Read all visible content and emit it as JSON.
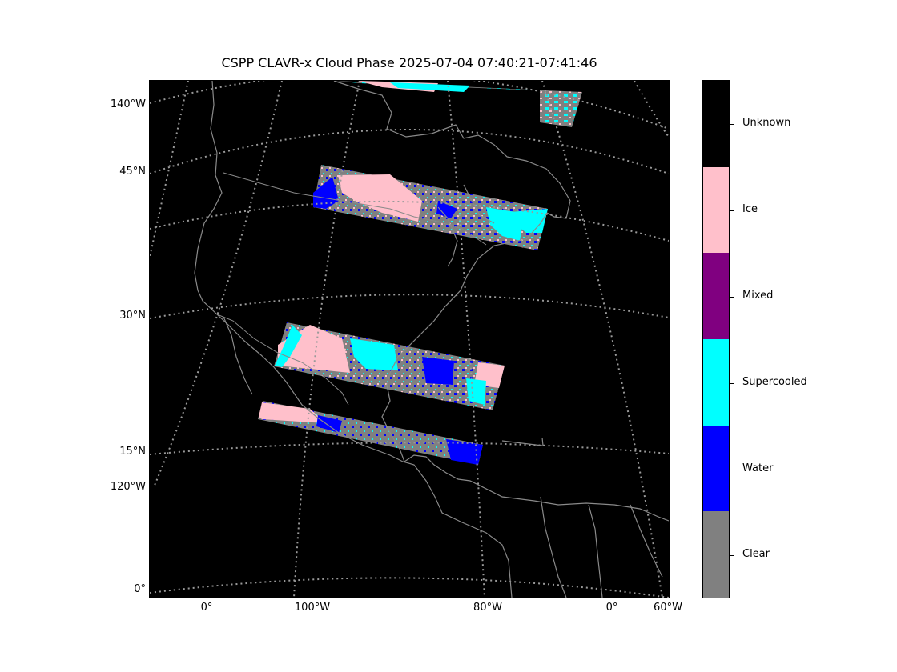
{
  "title": "CSPP CLAVR-x Cloud Phase 2025-07-04 07:40:21-07:41:46",
  "map": {
    "latitude_labels": [
      "45°N",
      "30°N",
      "15°N",
      "0°"
    ],
    "longitude_labels_left": [
      "140°W",
      "120°W"
    ],
    "longitude_labels_bottom": [
      "0°",
      "100°W",
      "80°W",
      "0°",
      "60°W"
    ]
  },
  "legend": {
    "categories": [
      {
        "label": "Unknown",
        "color": "#000000"
      },
      {
        "label": "Ice",
        "color": "#ffc0cb"
      },
      {
        "label": "Mixed",
        "color": "#800080"
      },
      {
        "label": "Supercooled",
        "color": "#00ffff"
      },
      {
        "label": "Water",
        "color": "#0000ff"
      },
      {
        "label": "Clear",
        "color": "#808080"
      }
    ]
  },
  "colors": {
    "background": "#000000",
    "coastline": "#8a8a8a",
    "graticule": "#9a9a9a"
  }
}
